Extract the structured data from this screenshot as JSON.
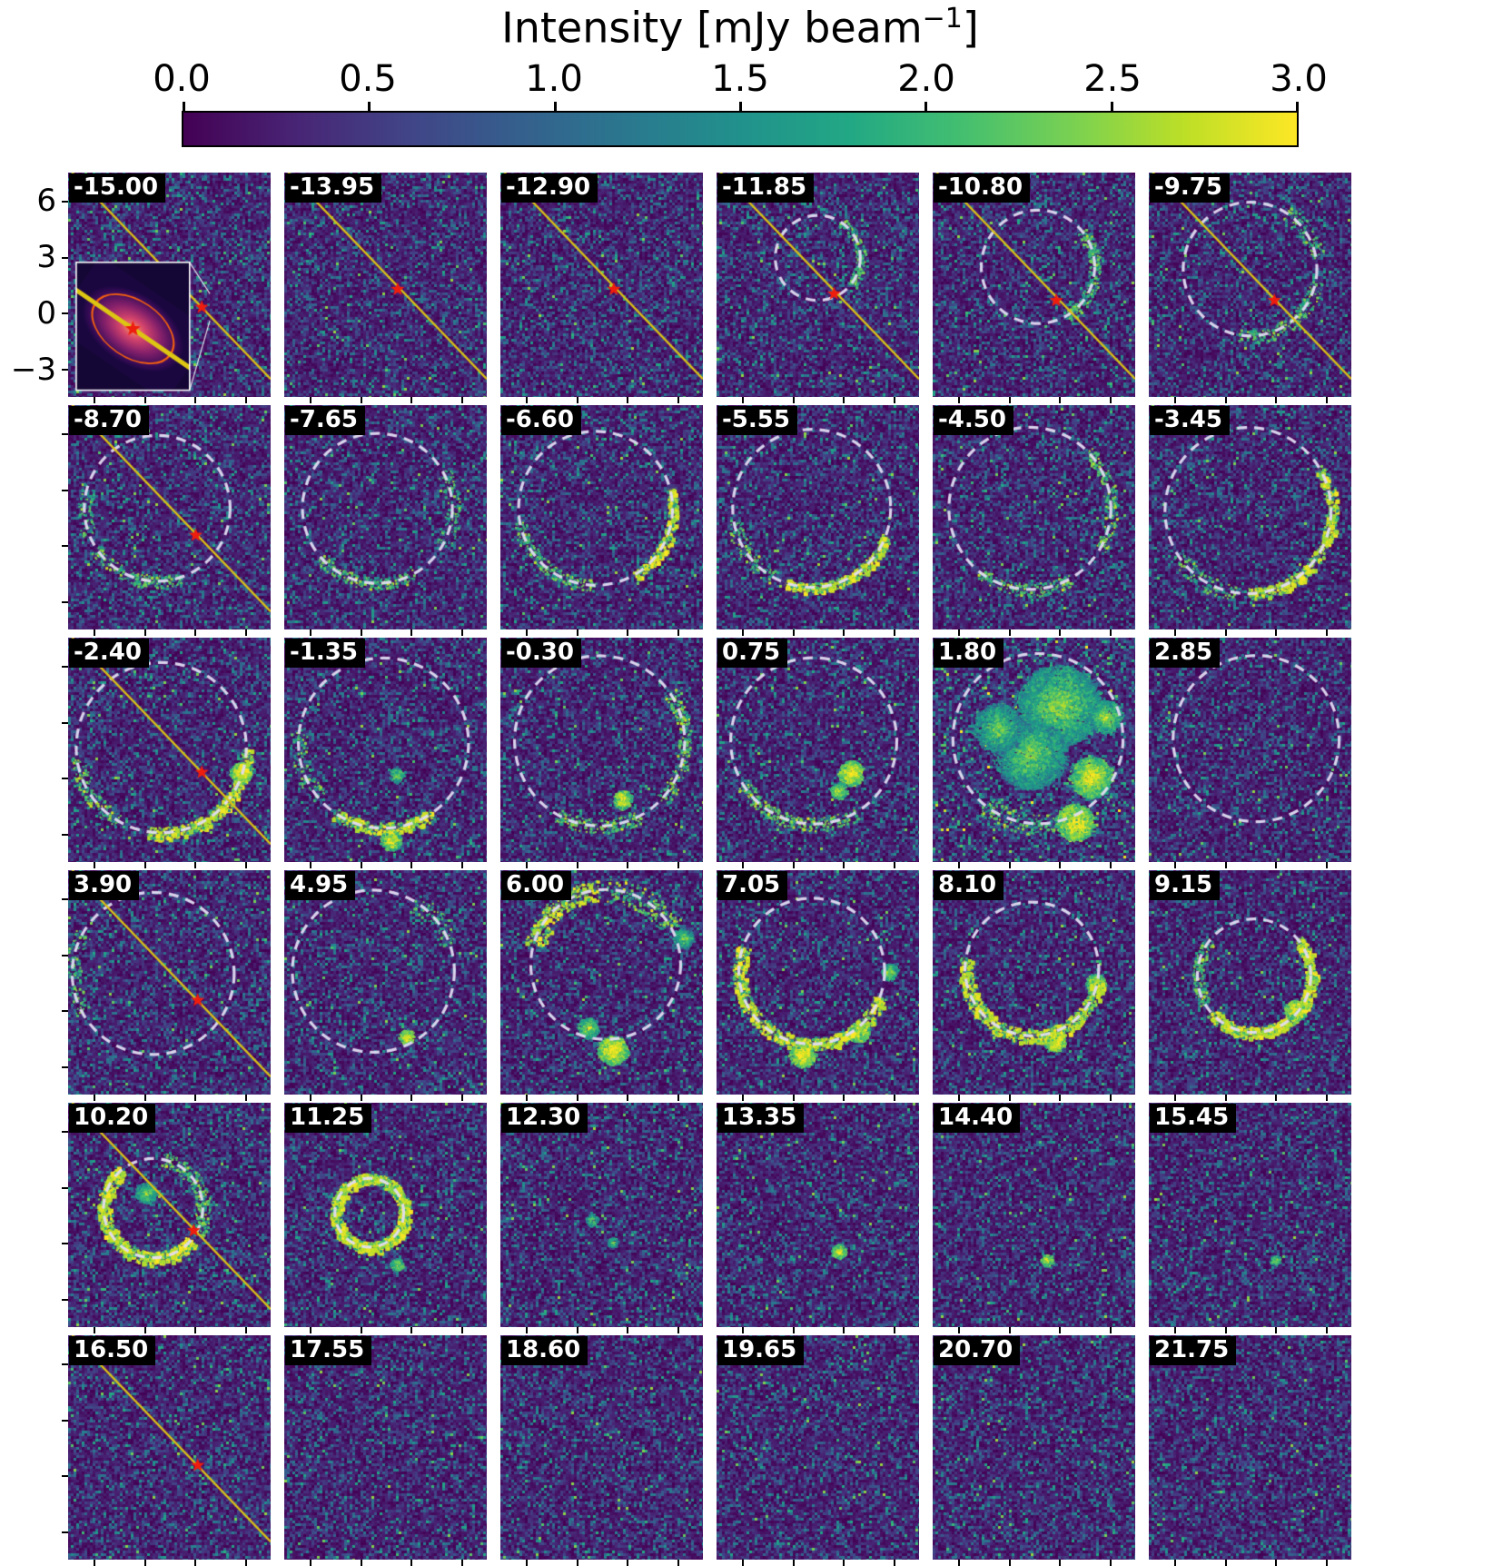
{
  "figure_title": {
    "prefix": "Intensity [mJy beam",
    "exponent": "−1",
    "suffix": "]"
  },
  "colorbar": {
    "ticks": [
      "0.0",
      "0.5",
      "1.0",
      "1.5",
      "2.0",
      "2.5",
      "3.0"
    ],
    "colormap": "viridis",
    "range": [
      0.0,
      3.0
    ]
  },
  "y_axis": {
    "ticks": [
      "6",
      "3",
      "0",
      "−3"
    ]
  },
  "chart_data": {
    "type": "heatmap",
    "title": "Intensity [mJy beam^-1]",
    "colorbar_label": "Intensity [mJy beam^-1]",
    "colormap": "viridis",
    "intensity_range": [
      0.0,
      3.0
    ],
    "colorbar_ticks": [
      0.0,
      0.5,
      1.0,
      1.5,
      2.0,
      2.5,
      3.0
    ],
    "y_axis_ticks_arcsec": [
      6,
      3,
      0,
      -3
    ],
    "channel_velocities": [
      -15.0,
      -13.95,
      -12.9,
      -11.85,
      -10.8,
      -9.75,
      -8.7,
      -7.65,
      -6.6,
      -5.55,
      -4.5,
      -3.45,
      -2.4,
      -1.35,
      -0.3,
      0.75,
      1.8,
      2.85,
      3.9,
      4.95,
      6.0,
      7.05,
      8.1,
      9.15,
      10.2,
      11.25,
      12.3,
      13.35,
      14.4,
      15.45,
      16.5,
      17.55,
      18.6,
      19.65,
      20.7,
      21.75
    ],
    "panels": [
      {
        "v": "-15.00",
        "line": true,
        "star": [
          0.66,
          0.6
        ],
        "inset": true
      },
      {
        "v": "-13.95",
        "line": true,
        "star": [
          0.56,
          0.52
        ]
      },
      {
        "v": "-12.90",
        "line": true,
        "star": [
          0.56,
          0.52
        ]
      },
      {
        "v": "-11.85",
        "line": true,
        "star": [
          0.58,
          0.54
        ],
        "circle": [
          0.5,
          0.38,
          0.21
        ],
        "arcs": [
          [
            -60,
            40,
            0.3,
            0.12
          ]
        ]
      },
      {
        "v": "-10.80",
        "line": true,
        "star": [
          0.61,
          0.57
        ],
        "circle": [
          0.52,
          0.42,
          0.28
        ],
        "arcs": [
          [
            -40,
            60,
            0.35,
            0.1
          ]
        ]
      },
      {
        "v": "-9.75",
        "line": true,
        "star": [
          0.62,
          0.57
        ],
        "circle": [
          0.5,
          0.43,
          0.33
        ],
        "arcs": [
          [
            10,
            100,
            0.4,
            0.1
          ],
          [
            -60,
            -10,
            0.3,
            0.12
          ]
        ]
      },
      {
        "v": "-8.70",
        "line": true,
        "star": [
          0.63,
          0.58
        ],
        "circle": [
          0.44,
          0.46,
          0.36
        ],
        "arcs": [
          [
            70,
            150,
            0.4,
            0.09
          ],
          [
            160,
            200,
            0.25,
            0.1
          ]
        ]
      },
      {
        "v": "-7.65",
        "circle": [
          0.46,
          0.46,
          0.37
        ],
        "arcs": [
          [
            60,
            140,
            0.45,
            0.08
          ],
          [
            -30,
            30,
            0.3,
            0.1
          ]
        ]
      },
      {
        "v": "-6.60",
        "circle": [
          0.47,
          0.46,
          0.38
        ],
        "arcs": [
          [
            -15,
            60,
            0.8,
            0.06
          ],
          [
            90,
            170,
            0.5,
            0.08
          ]
        ]
      },
      {
        "v": "-5.55",
        "circle": [
          0.47,
          0.46,
          0.39
        ],
        "arcs": [
          [
            20,
            110,
            0.85,
            0.06
          ],
          [
            120,
            170,
            0.35,
            0.1
          ]
        ]
      },
      {
        "v": "-4.50",
        "circle": [
          0.48,
          0.46,
          0.4
        ],
        "arcs": [
          [
            -45,
            30,
            0.55,
            0.08
          ],
          [
            60,
            130,
            0.45,
            0.08
          ]
        ]
      },
      {
        "v": "-3.45",
        "circle": [
          0.49,
          0.47,
          0.41
        ],
        "arcs": [
          [
            -30,
            90,
            0.75,
            0.07
          ],
          [
            100,
            150,
            0.35,
            0.1
          ]
        ]
      },
      {
        "v": "-2.40",
        "line": true,
        "star": [
          0.66,
          0.6
        ],
        "circle": [
          0.46,
          0.49,
          0.42
        ],
        "arcs": [
          [
            0,
            100,
            0.9,
            0.07
          ],
          [
            120,
            175,
            0.5,
            0.09
          ]
        ],
        "blobs": [
          [
            0.85,
            0.6,
            0.05,
            1.0
          ]
        ]
      },
      {
        "v": "-1.35",
        "circle": [
          0.49,
          0.47,
          0.42
        ],
        "arcs": [
          [
            55,
            125,
            0.85,
            0.07
          ],
          [
            140,
            190,
            0.4,
            0.1
          ]
        ],
        "blobs": [
          [
            0.55,
            0.61,
            0.035,
            0.6
          ],
          [
            0.52,
            0.9,
            0.05,
            0.9
          ]
        ]
      },
      {
        "v": "-0.30",
        "circle": [
          0.49,
          0.46,
          0.42
        ],
        "arcs": [
          [
            -35,
            45,
            0.6,
            0.08
          ],
          [
            60,
            120,
            0.55,
            0.08
          ]
        ],
        "blobs": [
          [
            0.6,
            0.72,
            0.045,
            0.95
          ]
        ]
      },
      {
        "v": "0.75",
        "circle": [
          0.48,
          0.46,
          0.41
        ],
        "arcs": [
          [
            60,
            150,
            0.6,
            0.08
          ]
        ],
        "blobs": [
          [
            0.66,
            0.6,
            0.06,
            1.0
          ],
          [
            0.6,
            0.68,
            0.04,
            0.8
          ]
        ]
      },
      {
        "v": "1.80",
        "circle": [
          0.52,
          0.45,
          0.42
        ],
        "boost": 1.25,
        "arcs": [
          [
            60,
            130,
            0.5,
            0.12
          ]
        ],
        "blobs": [
          [
            0.62,
            0.3,
            0.2,
            0.55
          ],
          [
            0.48,
            0.52,
            0.17,
            0.5
          ],
          [
            0.78,
            0.62,
            0.1,
            0.9
          ],
          [
            0.7,
            0.82,
            0.09,
            1.0
          ],
          [
            0.32,
            0.4,
            0.12,
            0.45
          ],
          [
            0.85,
            0.35,
            0.08,
            0.6
          ]
        ]
      },
      {
        "v": "2.85",
        "circle": [
          0.53,
          0.45,
          0.41
        ]
      },
      {
        "v": "3.90",
        "line": true,
        "star": [
          0.64,
          0.58
        ],
        "circle": [
          0.42,
          0.46,
          0.4
        ],
        "arcs": [
          [
            150,
            210,
            0.25,
            0.1
          ]
        ]
      },
      {
        "v": "4.95",
        "circle": [
          0.44,
          0.45,
          0.4
        ],
        "arcs": [
          [
            -60,
            -20,
            0.25,
            0.12
          ]
        ],
        "blobs": [
          [
            0.6,
            0.74,
            0.035,
            0.95
          ]
        ]
      },
      {
        "v": "6.00",
        "circle": [
          0.52,
          0.42,
          0.37
        ],
        "arcs": [
          [
            -165,
            -95,
            0.85,
            0.13
          ],
          [
            -90,
            -30,
            0.55,
            0.16
          ]
        ],
        "blobs": [
          [
            0.55,
            0.8,
            0.07,
            1.0
          ],
          [
            0.43,
            0.7,
            0.05,
            0.7
          ],
          [
            0.9,
            0.3,
            0.05,
            0.5
          ],
          [
            0.15,
            0.08,
            0.06,
            0.5
          ]
        ]
      },
      {
        "v": "7.05",
        "circle": [
          0.47,
          0.45,
          0.36
        ],
        "arcs": [
          [
            20,
            200,
            0.85,
            0.09
          ]
        ],
        "blobs": [
          [
            0.42,
            0.82,
            0.06,
            1.0
          ],
          [
            0.7,
            0.72,
            0.05,
            0.9
          ],
          [
            0.85,
            0.45,
            0.04,
            0.6
          ]
        ]
      },
      {
        "v": "8.10",
        "circle": [
          0.49,
          0.44,
          0.33
        ],
        "arcs": [
          [
            10,
            190,
            0.85,
            0.1
          ]
        ],
        "blobs": [
          [
            0.6,
            0.76,
            0.05,
            1.0
          ],
          [
            0.8,
            0.5,
            0.045,
            0.9
          ]
        ]
      },
      {
        "v": "9.15",
        "circle": [
          0.52,
          0.47,
          0.28
        ],
        "arcs": [
          [
            -40,
            140,
            0.95,
            0.1
          ],
          [
            150,
            220,
            0.4,
            0.1
          ]
        ],
        "blobs": [
          [
            0.72,
            0.62,
            0.05,
            1.0
          ]
        ]
      },
      {
        "v": "10.20",
        "line": true,
        "star": [
          0.62,
          0.57
        ],
        "circle": [
          0.42,
          0.47,
          0.245
        ],
        "arcs": [
          [
            40,
            230,
            0.85,
            0.13
          ],
          [
            -80,
            30,
            0.45,
            0.15
          ]
        ],
        "blobs": [
          [
            0.38,
            0.4,
            0.05,
            0.55
          ]
        ]
      },
      {
        "v": "11.25",
        "circle": [
          0.42,
          0.49,
          0.17
        ],
        "arcs": [
          [
            0,
            360,
            0.8,
            0.16
          ]
        ],
        "blobs": [
          [
            0.55,
            0.72,
            0.03,
            0.7
          ]
        ]
      },
      {
        "v": "12.30",
        "blobs": [
          [
            0.45,
            0.52,
            0.03,
            0.45
          ],
          [
            0.55,
            0.62,
            0.025,
            0.5
          ]
        ]
      },
      {
        "v": "13.35",
        "blobs": [
          [
            0.6,
            0.66,
            0.035,
            0.9
          ]
        ]
      },
      {
        "v": "14.40",
        "blobs": [
          [
            0.56,
            0.7,
            0.03,
            0.85
          ]
        ]
      },
      {
        "v": "15.45",
        "blobs": [
          [
            0.62,
            0.7,
            0.025,
            0.6
          ]
        ]
      },
      {
        "v": "16.50",
        "line": true,
        "star": [
          0.64,
          0.58
        ]
      },
      {
        "v": "17.55"
      },
      {
        "v": "18.60"
      },
      {
        "v": "19.65"
      },
      {
        "v": "20.70"
      },
      {
        "v": "21.75"
      }
    ]
  }
}
